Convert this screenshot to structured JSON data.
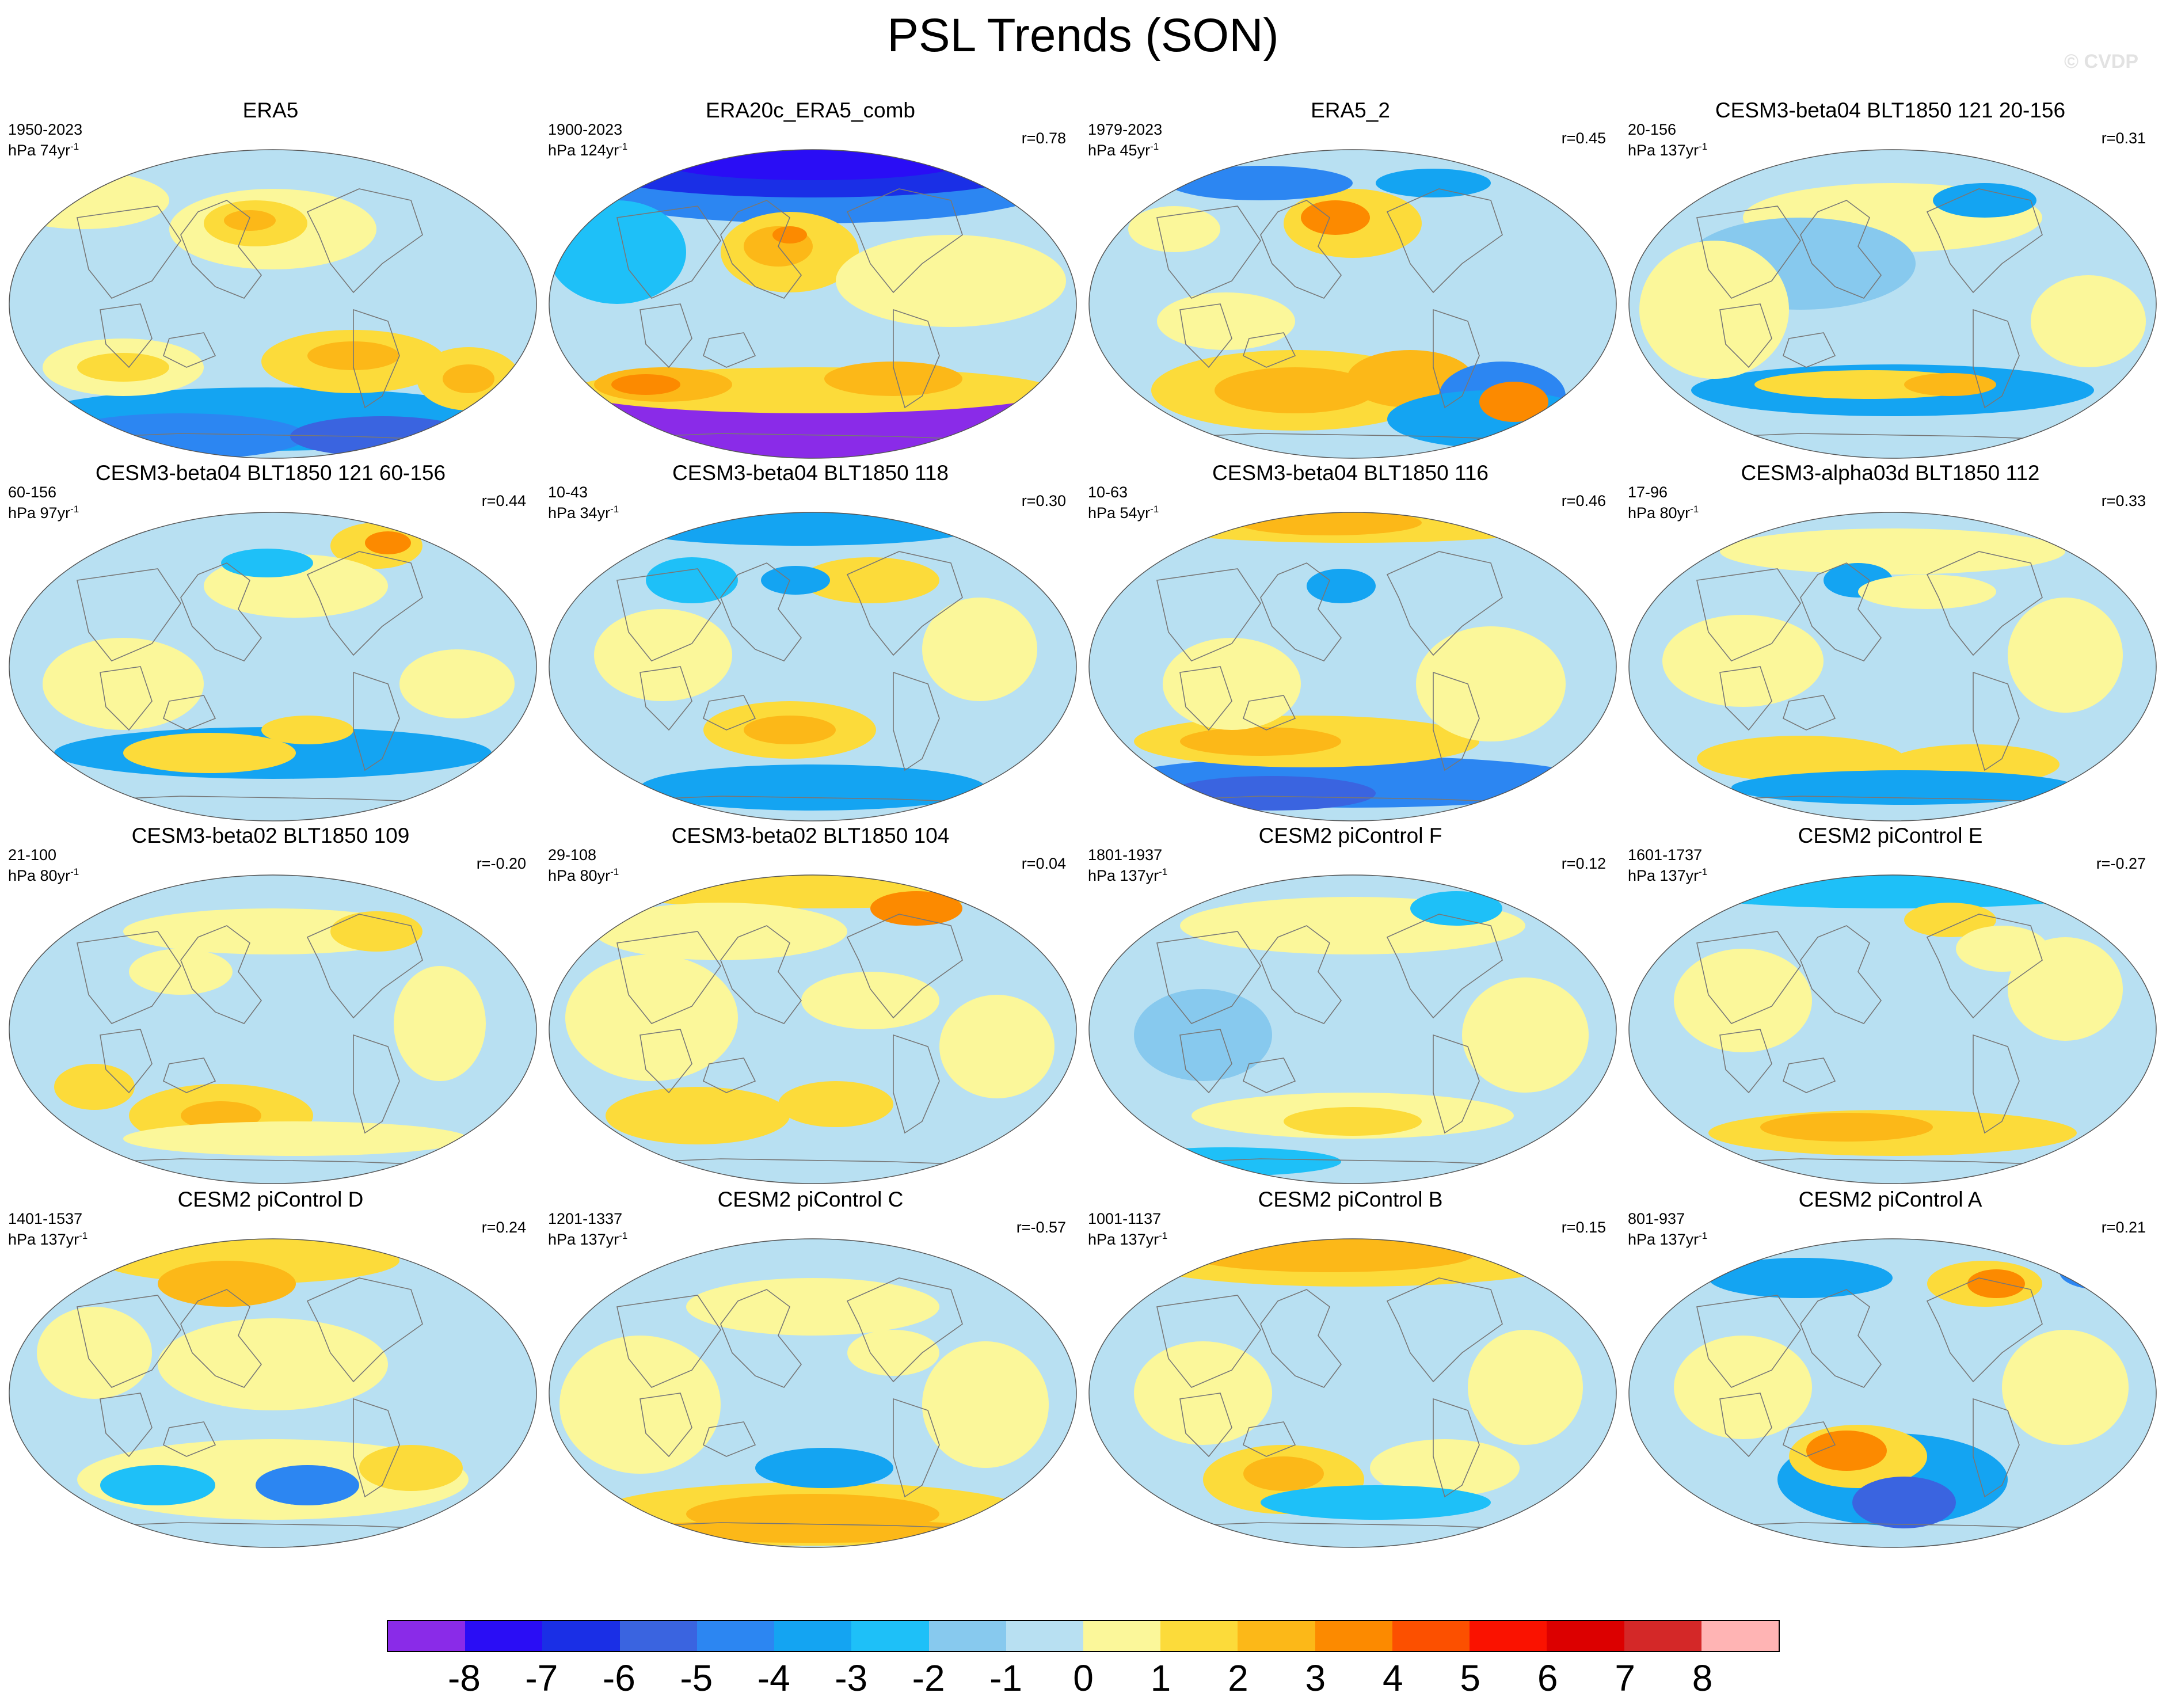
{
  "title": "PSL Trends (SON)",
  "watermark": "© CVDP",
  "panels": [
    {
      "title": "ERA5",
      "period": "1950-2023",
      "units": "hPa 74yr",
      "corr": "",
      "scheme": 0
    },
    {
      "title": "ERA20c_ERA5_comb",
      "period": "1900-2023",
      "units": "hPa 124yr",
      "corr": "r=0.78",
      "scheme": 1
    },
    {
      "title": "ERA5_2",
      "period": "1979-2023",
      "units": "hPa 45yr",
      "corr": "r=0.45",
      "scheme": 2
    },
    {
      "title": "CESM3-beta04 BLT1850 121 20-156",
      "period": "20-156",
      "units": "hPa 137yr",
      "corr": "r=0.31",
      "scheme": 3
    },
    {
      "title": "CESM3-beta04 BLT1850 121 60-156",
      "period": "60-156",
      "units": "hPa 97yr",
      "corr": "r=0.44",
      "scheme": 4
    },
    {
      "title": "CESM3-beta04 BLT1850 118",
      "period": "10-43",
      "units": "hPa 34yr",
      "corr": "r=0.30",
      "scheme": 5
    },
    {
      "title": "CESM3-beta04 BLT1850 116",
      "period": "10-63",
      "units": "hPa 54yr",
      "corr": "r=0.46",
      "scheme": 6
    },
    {
      "title": "CESM3-alpha03d BLT1850 112",
      "period": "17-96",
      "units": "hPa 80yr",
      "corr": "r=0.33",
      "scheme": 7
    },
    {
      "title": "CESM3-beta02 BLT1850 109",
      "period": "21-100",
      "units": "hPa 80yr",
      "corr": "r=-0.20",
      "scheme": 8
    },
    {
      "title": "CESM3-beta02 BLT1850 104",
      "period": "29-108",
      "units": "hPa 80yr",
      "corr": "r=0.04",
      "scheme": 9
    },
    {
      "title": "CESM2 piControl F",
      "period": "1801-1937",
      "units": "hPa 137yr",
      "corr": "r=0.12",
      "scheme": 10
    },
    {
      "title": "CESM2 piControl E",
      "period": "1601-1737",
      "units": "hPa 137yr",
      "corr": "r=-0.27",
      "scheme": 11
    },
    {
      "title": "CESM2 piControl D",
      "period": "1401-1537",
      "units": "hPa 137yr",
      "corr": "r=0.24",
      "scheme": 12
    },
    {
      "title": "CESM2 piControl C",
      "period": "1201-1337",
      "units": "hPa 137yr",
      "corr": "r=-0.57",
      "scheme": 13
    },
    {
      "title": "CESM2 piControl B",
      "period": "1001-1137",
      "units": "hPa 137yr",
      "corr": "r=0.15",
      "scheme": 14
    },
    {
      "title": "CESM2 piControl A",
      "period": "801-937",
      "units": "hPa 137yr",
      "corr": "r=0.21",
      "scheme": 15
    }
  ],
  "colorbar": {
    "colors": [
      "#8a2be8",
      "#2a0df5",
      "#1a2fe6",
      "#3a64e0",
      "#2c86f2",
      "#14a4f2",
      "#1ec0f8",
      "#87c9ee",
      "#b8e0f2",
      "#fbf79a",
      "#fcdb3a",
      "#fcb818",
      "#fc8a00",
      "#fc5000",
      "#fa1200",
      "#dc0000",
      "#d42828",
      "#ffb4b4"
    ],
    "labels": [
      "-8",
      "-7",
      "-6",
      "-5",
      "-4",
      "-3",
      "-2",
      "-1",
      "0",
      "1",
      "2",
      "3",
      "4",
      "5",
      "6",
      "7",
      "8"
    ]
  },
  "chart_data": {
    "type": "heatmap",
    "title": "PSL Trends (SON)",
    "variable": "PSL trend",
    "units": "hPa per period",
    "levels": [
      -8,
      -7,
      -6,
      -5,
      -4,
      -3,
      -2,
      -1,
      0,
      1,
      2,
      3,
      4,
      5,
      6,
      7,
      8
    ],
    "panels": [
      "ERA5",
      "ERA20c_ERA5_comb",
      "ERA5_2",
      "CESM3-beta04 BLT1850 121 20-156",
      "CESM3-beta04 BLT1850 121 60-156",
      "CESM3-beta04 BLT1850 118",
      "CESM3-beta04 BLT1850 116",
      "CESM3-alpha03d BLT1850 112",
      "CESM3-beta02 BLT1850 109",
      "CESM3-beta02 BLT1850 104",
      "CESM2 piControl F",
      "CESM2 piControl E",
      "CESM2 piControl D",
      "CESM2 piControl C",
      "CESM2 piControl B",
      "CESM2 piControl A"
    ],
    "pattern_correlations": [
      "",
      "0.78",
      "0.45",
      "0.31",
      "0.44",
      "0.30",
      "0.46",
      "0.33",
      "-0.20",
      "0.04",
      "0.12",
      "-0.27",
      "0.24",
      "-0.57",
      "0.15",
      "0.21"
    ]
  }
}
